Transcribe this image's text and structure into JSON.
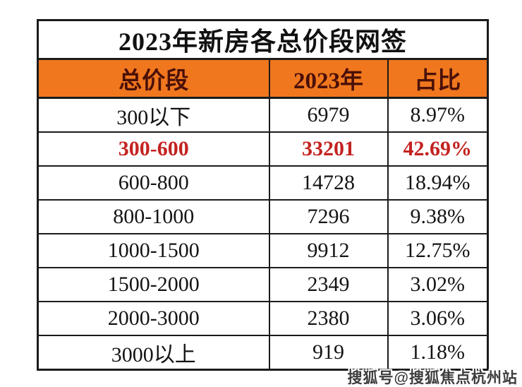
{
  "chart_data": {
    "type": "table",
    "title": "2023年新房各总价段网签",
    "columns": [
      "总价段",
      "2023年",
      "占比"
    ],
    "rows": [
      [
        "300以下",
        "6979",
        "8.97%"
      ],
      [
        "300-600",
        "33201",
        "42.69%"
      ],
      [
        "600-800",
        "14728",
        "18.94%"
      ],
      [
        "800-1000",
        "7296",
        "9.38%"
      ],
      [
        "1000-1500",
        "9912",
        "12.75%"
      ],
      [
        "1500-2000",
        "2349",
        "3.02%"
      ],
      [
        "2000-3000",
        "2380",
        "3.06%"
      ],
      [
        "3000以上",
        "919",
        "1.18%"
      ]
    ],
    "highlighted_row": "300-600",
    "layout": {
      "grid": true,
      "header_position": "top"
    }
  },
  "colors": {
    "header_background": "#F0771E",
    "header_text": "#4A1008",
    "highlight_text": "#C32320",
    "body_text": "#141414",
    "border": "#1B1B1B",
    "background": "#FFFFFF"
  },
  "watermark": {
    "label": "搜狐号@搜狐焦点杭州站"
  }
}
